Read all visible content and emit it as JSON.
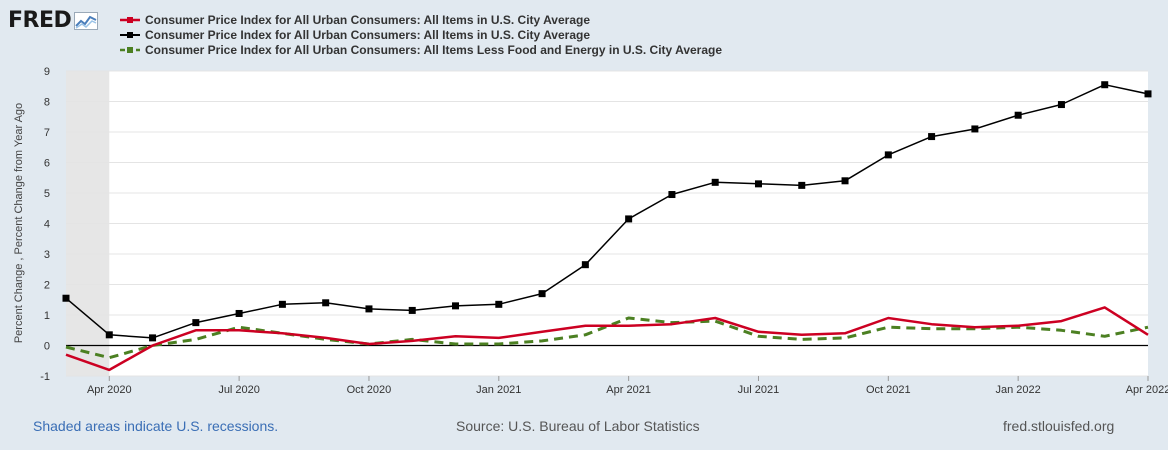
{
  "brand": {
    "name": "FRED",
    "logo_icon": "chart-line-icon"
  },
  "footer": {
    "recession_note": "Shaded areas indicate U.S. recessions.",
    "source": "Source: U.S. Bureau of Labor Statistics",
    "site": "fred.stlouisfed.org"
  },
  "colors": {
    "background": "#e1e9f0",
    "plot_bg": "#ffffff",
    "series_red": "#cc0022",
    "series_black": "#000000",
    "series_green": "#4c8022",
    "recession_shade": "#e6e6e6"
  },
  "chart_data": {
    "type": "line",
    "title": "",
    "xlabel": "",
    "ylabel": "Percent Change , Percent Change from Year Ago",
    "ylim": [
      -1,
      9
    ],
    "yticks": [
      -1,
      0,
      1,
      2,
      3,
      4,
      5,
      6,
      7,
      8,
      9
    ],
    "x": [
      "2020-03",
      "2020-04",
      "2020-05",
      "2020-06",
      "2020-07",
      "2020-08",
      "2020-09",
      "2020-10",
      "2020-11",
      "2020-12",
      "2021-01",
      "2021-02",
      "2021-03",
      "2021-04",
      "2021-05",
      "2021-06",
      "2021-07",
      "2021-08",
      "2021-09",
      "2021-10",
      "2021-11",
      "2021-12",
      "2022-01",
      "2022-02",
      "2022-03",
      "2022-04"
    ],
    "x_range": [
      "2020-03",
      "2022-04"
    ],
    "xtick_labels": [
      {
        "label": "Apr 2020",
        "index": 1
      },
      {
        "label": "Jul 2020",
        "index": 4
      },
      {
        "label": "Oct 2020",
        "index": 7
      },
      {
        "label": "Jan 2021",
        "index": 10
      },
      {
        "label": "Apr 2021",
        "index": 13
      },
      {
        "label": "Jul 2021",
        "index": 16
      },
      {
        "label": "Oct 2021",
        "index": 19
      },
      {
        "label": "Jan 2022",
        "index": 22
      },
      {
        "label": "Apr 2022",
        "index": 25
      }
    ],
    "recession": {
      "start": "2020-03",
      "end": "2020-04"
    },
    "grid": true,
    "legend_position": "top-left",
    "series": [
      {
        "name": "Consumer Price Index for All Urban Consumers: All Items in U.S. City Average",
        "color": "#cc0022",
        "style": "solid",
        "marker": "none",
        "values": [
          -0.3,
          -0.8,
          0.0,
          0.5,
          0.5,
          0.4,
          0.25,
          0.05,
          0.15,
          0.3,
          0.25,
          0.45,
          0.65,
          0.65,
          0.7,
          0.9,
          0.45,
          0.35,
          0.4,
          0.9,
          0.7,
          0.6,
          0.65,
          0.8,
          1.25,
          0.35
        ]
      },
      {
        "name": "Consumer Price Index for All Urban Consumers: All Items in U.S. City Average",
        "color": "#000000",
        "style": "solid",
        "marker": "square",
        "values": [
          1.55,
          0.35,
          0.25,
          0.75,
          1.05,
          1.35,
          1.4,
          1.2,
          1.15,
          1.3,
          1.35,
          1.7,
          2.65,
          4.15,
          4.95,
          5.35,
          5.3,
          5.25,
          5.4,
          6.25,
          6.85,
          7.1,
          7.55,
          7.9,
          8.55,
          8.25
        ]
      },
      {
        "name": "Consumer Price Index for All Urban Consumers: All Items Less Food and Energy in U.S. City Average",
        "color": "#4c8022",
        "style": "dashed",
        "marker": "none",
        "values": [
          -0.05,
          -0.4,
          0.0,
          0.2,
          0.6,
          0.4,
          0.2,
          0.05,
          0.2,
          0.05,
          0.05,
          0.15,
          0.35,
          0.9,
          0.75,
          0.8,
          0.3,
          0.2,
          0.25,
          0.6,
          0.55,
          0.55,
          0.6,
          0.5,
          0.3,
          0.6
        ]
      }
    ]
  }
}
